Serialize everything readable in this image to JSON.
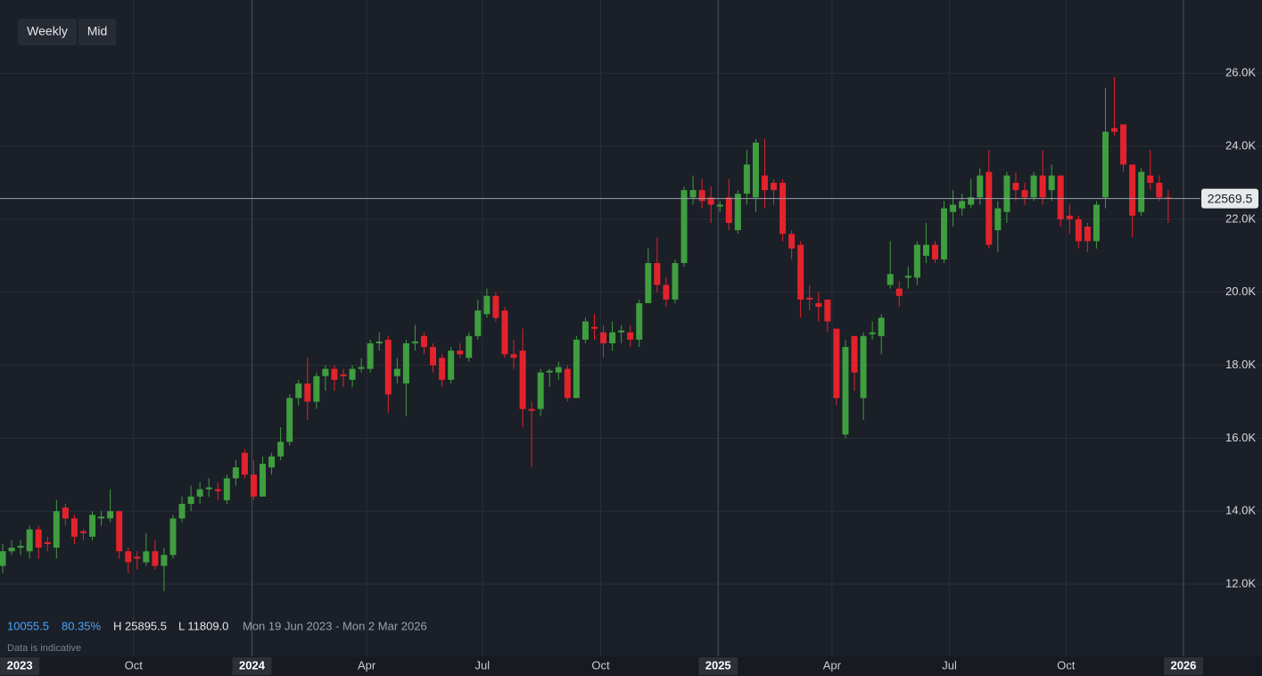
{
  "chart_data": {
    "type": "candlestick",
    "toolbar": [
      "Weekly",
      "Mid"
    ],
    "stats": {
      "change": "10055.5",
      "change_pct": "80.35%",
      "high": "H 25895.5",
      "low": "L 11809.0",
      "range": "Mon 19 Jun 2023 - Mon 2 Mar 2026"
    },
    "note": "Data is indicative",
    "up_color": "#3f9e3f",
    "down_color": "#e3232c",
    "grid": true,
    "xlim": [
      -0.3,
      133.0
    ],
    "xticks": [
      {
        "value": 1.9,
        "label": "2023"
      },
      {
        "value": 14.6,
        "label": "Oct"
      },
      {
        "value": 27.8,
        "label": "2024"
      },
      {
        "value": 40.6,
        "label": "Apr"
      },
      {
        "value": 53.5,
        "label": "Jul"
      },
      {
        "value": 66.7,
        "label": "Oct"
      },
      {
        "value": 79.8,
        "label": "2025"
      },
      {
        "value": 92.5,
        "label": "Apr"
      },
      {
        "value": 105.6,
        "label": "Jul"
      },
      {
        "value": 118.6,
        "label": "Oct"
      },
      {
        "value": 131.7,
        "label": "2026"
      }
    ],
    "ylim": [
      10020,
      28010
    ],
    "yticks": [
      {
        "value": 12000,
        "label": "12.0K"
      },
      {
        "value": 14000,
        "label": "14.0K"
      },
      {
        "value": 16000,
        "label": "16.0K"
      },
      {
        "value": 18000,
        "label": "18.0K"
      },
      {
        "value": 20000,
        "label": "20.0K"
      },
      {
        "value": 22000,
        "label": "22.0K"
      },
      {
        "value": 24000,
        "label": "24.0K"
      },
      {
        "value": 26000,
        "label": "26.0K"
      }
    ],
    "open": [
      12500,
      12900,
      13000,
      12900,
      13500,
      13150,
      13000,
      14100,
      13800,
      13450,
      13300,
      13800,
      13800,
      14000,
      12900,
      12750,
      12600,
      12900,
      12500,
      12800,
      13800,
      14200,
      14400,
      14600,
      14600,
      14300,
      14900,
      15600,
      15000,
      14400,
      15200,
      15500,
      15900,
      17100,
      17500,
      17000,
      17700,
      17900,
      17750,
      17600,
      17900,
      17900,
      18600,
      18700,
      17700,
      17500,
      18600,
      18800,
      18500,
      18200,
      17600,
      18400,
      18200,
      18800,
      19400,
      19900,
      19500,
      18300,
      18400,
      16800,
      16800,
      17800,
      17800,
      17900,
      17100,
      18700,
      19050,
      18900,
      18600,
      18900,
      18900,
      18700,
      19700,
      20800,
      20200,
      19800,
      20800,
      22600,
      22800,
      22600,
      22350,
      22600,
      21700,
      22700,
      22600,
      23200,
      23000,
      23000,
      21600,
      21300,
      19850,
      19700,
      19800,
      19000,
      16100,
      18800,
      17100,
      18850,
      18800,
      20200,
      20100,
      20400,
      20400,
      21000,
      21300,
      20900,
      22200,
      22300,
      22400,
      22600,
      23300,
      21700,
      22200,
      23000,
      22800,
      22600,
      23200,
      22800,
      23200,
      22100,
      22000,
      21800,
      21400,
      22600,
      24500,
      24600,
      23500,
      22200,
      23200,
      23000,
      22600
    ],
    "high": [
      13100,
      13200,
      13200,
      13600,
      13600,
      13300,
      14300,
      14200,
      13900,
      13500,
      14000,
      14000,
      14600,
      14000,
      13000,
      12900,
      13400,
      13200,
      13000,
      13900,
      14400,
      14700,
      14800,
      14900,
      14800,
      15000,
      15400,
      15700,
      15400,
      15500,
      15600,
      16300,
      17200,
      17600,
      18200,
      17800,
      18000,
      18000,
      17900,
      18000,
      18200,
      18700,
      18900,
      18800,
      18200,
      18700,
      19100,
      18900,
      18600,
      18300,
      18500,
      18600,
      18900,
      19800,
      20100,
      20000,
      19600,
      18700,
      19000,
      17000,
      17900,
      17900,
      18100,
      18000,
      18800,
      19300,
      19400,
      19100,
      19200,
      19100,
      19100,
      19800,
      21200,
      21500,
      20400,
      20900,
      22900,
      23200,
      23100,
      22900,
      22500,
      23100,
      22800,
      23900,
      24200,
      24200,
      23100,
      23100,
      21700,
      21400,
      20200,
      20000,
      19800,
      19000,
      18700,
      18800,
      18900,
      19200,
      19400,
      21400,
      20300,
      20700,
      21400,
      21900,
      21400,
      22500,
      22800,
      22700,
      23100,
      23400,
      23900,
      22500,
      23300,
      23300,
      23000,
      23300,
      23900,
      23500,
      23200,
      22400,
      22100,
      21900,
      22500,
      25600,
      25895.5,
      24600,
      23500,
      23400,
      23900,
      23200,
      22800
    ],
    "low": [
      12300,
      12800,
      12800,
      12700,
      12700,
      12900,
      12700,
      13600,
      13100,
      13200,
      13200,
      13600,
      13700,
      12700,
      12300,
      12400,
      12500,
      12400,
      11809,
      12700,
      13700,
      14000,
      14200,
      14400,
      14300,
      14200,
      14700,
      14900,
      14300,
      14400,
      15000,
      15400,
      15800,
      16900,
      16500,
      16800,
      17300,
      17300,
      17400,
      17400,
      17800,
      17800,
      18400,
      16700,
      17500,
      16600,
      18400,
      18300,
      17800,
      17400,
      17500,
      18200,
      18100,
      18700,
      19300,
      19200,
      18200,
      17900,
      16300,
      15200,
      16600,
      17400,
      17600,
      17000,
      17100,
      18600,
      18700,
      18200,
      18400,
      18600,
      18500,
      18500,
      19700,
      20000,
      19600,
      19700,
      20700,
      22400,
      22300,
      21900,
      22200,
      21700,
      21600,
      22400,
      22200,
      22300,
      22400,
      21400,
      20900,
      19300,
      19500,
      19200,
      18900,
      16900,
      16000,
      17300,
      16500,
      18700,
      18300,
      20100,
      19600,
      20100,
      20200,
      20800,
      20800,
      20800,
      21800,
      22100,
      22300,
      22400,
      21200,
      21100,
      21900,
      22500,
      22400,
      22500,
      22400,
      22500,
      21800,
      21600,
      21200,
      21100,
      21200,
      22300,
      24300,
      23300,
      21500,
      22100,
      22800,
      22500,
      21900
    ],
    "close": [
      12900,
      13000,
      13050,
      13500,
      13000,
      13100,
      14000,
      13800,
      13300,
      13400,
      13900,
      13850,
      14000,
      12900,
      12600,
      12700,
      12900,
      12500,
      12800,
      13800,
      14200,
      14400,
      14600,
      14650,
      14550,
      14900,
      15200,
      15000,
      14400,
      15300,
      15500,
      15900,
      17100,
      17500,
      17000,
      17700,
      17900,
      17600,
      17700,
      17900,
      17950,
      18600,
      18650,
      17200,
      17900,
      18600,
      18650,
      18500,
      18000,
      17600,
      18400,
      18300,
      18800,
      19500,
      19900,
      19300,
      18300,
      18200,
      16800,
      16750,
      17800,
      17850,
      17950,
      17100,
      18700,
      19200,
      19000,
      18600,
      18900,
      18950,
      18700,
      19700,
      20800,
      20200,
      19800,
      20800,
      22800,
      22800,
      22500,
      22400,
      22400,
      21900,
      22700,
      23500,
      24100,
      22800,
      22800,
      21600,
      21200,
      19800,
      19800,
      19600,
      19200,
      17100,
      18500,
      17800,
      18800,
      18900,
      19300,
      20500,
      19900,
      20450,
      21300,
      21300,
      20900,
      22300,
      22400,
      22500,
      22600,
      23200,
      21300,
      22300,
      23200,
      22800,
      22600,
      23200,
      22600,
      23200,
      22000,
      22000,
      21400,
      21400,
      22400,
      24400,
      24400,
      23500,
      22100,
      23300,
      23000,
      22600,
      22569.5
    ]
  }
}
